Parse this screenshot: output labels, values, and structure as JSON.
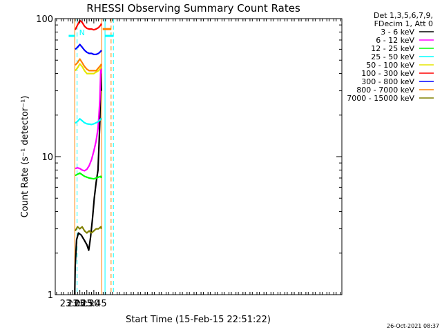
{
  "chart_data": {
    "type": "line",
    "title": "RHESSI Observing Summary Count Rates",
    "xlabel": "Start Time (15-Feb-15 22:51:22)",
    "ylabel": "Count Rate (s⁻¹ detector⁻¹)",
    "y_scale": "log",
    "ylim": [
      1,
      100
    ],
    "xlim_minutes": [
      22.37,
      32.62
    ],
    "x_ticks": [
      {
        "label": "23:00",
        "t": "23:00"
      },
      {
        "label": "23:15",
        "t": "23:15"
      },
      {
        "label": "23:30",
        "t": "23:30"
      },
      {
        "label": "23:45",
        "t": "23:45"
      },
      {
        "label": "00:00",
        "t": "00:00"
      },
      {
        "label": "00:15",
        "t": "00:15"
      },
      {
        "label": "00:30",
        "t": "00:30"
      }
    ],
    "y_ticks": [
      {
        "label": "1",
        "value": 1
      },
      {
        "label": "10",
        "value": 10
      },
      {
        "label": "100",
        "value": 100
      }
    ],
    "legend_header": [
      "Det 1,3,5,6,7,9,",
      "FDecim 1, Att 0"
    ],
    "legend_placement": "right",
    "series": [
      {
        "name": "3 - 6 keV",
        "color": "#000000",
        "x": [
          "23:04",
          "23:05",
          "23:08",
          "23:12",
          "23:18",
          "23:24",
          "23:30",
          "23:34",
          "23:38",
          "23:42",
          "23:46",
          "23:50",
          "23:54",
          "23:56",
          "23:58",
          "23:59",
          "24:00",
          "24:01"
        ],
        "y": [
          1.0,
          1.6,
          2.5,
          2.8,
          2.7,
          2.5,
          2.3,
          2.1,
          2.6,
          3.5,
          5.0,
          6.5,
          8.0,
          12,
          18,
          28,
          40,
          30
        ]
      },
      {
        "name": "6 - 12 keV",
        "color": "#ff00ff",
        "x": [
          "23:05",
          "23:10",
          "23:15",
          "23:20",
          "23:25",
          "23:30",
          "23:35",
          "23:40",
          "23:45",
          "23:50",
          "23:54",
          "23:56",
          "23:58",
          "23:59",
          "24:00",
          "24:01"
        ],
        "y": [
          8.2,
          8.3,
          8.2,
          8.0,
          7.9,
          8.1,
          8.6,
          9.5,
          11,
          13,
          16,
          20,
          26,
          34,
          45,
          40
        ]
      },
      {
        "name": "12 - 25 keV",
        "color": "#00ff00",
        "x": [
          "23:05",
          "23:15",
          "23:25",
          "23:35",
          "23:45",
          "23:55",
          "24:00",
          "24:01"
        ],
        "y": [
          7.3,
          7.6,
          7.2,
          7.0,
          6.9,
          7.1,
          7.2,
          7.0
        ]
      },
      {
        "name": "25 - 50 keV",
        "color": "#00ffff",
        "x": [
          "23:05",
          "23:10",
          "23:15",
          "23:20",
          "23:25",
          "23:30",
          "23:35",
          "23:40",
          "23:45",
          "23:50",
          "23:55",
          "24:00",
          "24:01"
        ],
        "y": [
          17.5,
          18.0,
          18.8,
          18.2,
          17.6,
          17.3,
          17.2,
          17.1,
          17.3,
          17.6,
          18.0,
          18.7,
          19.0
        ]
      },
      {
        "name": "50 - 100 keV",
        "color": "#e6e600",
        "x": [
          "23:05",
          "23:10",
          "23:15",
          "23:20",
          "23:25",
          "23:30",
          "23:35",
          "23:40",
          "23:45",
          "23:50",
          "23:55",
          "24:00",
          "24:01"
        ],
        "y": [
          42,
          44,
          47,
          45,
          42,
          40,
          40,
          40,
          40,
          41,
          42,
          44,
          45
        ]
      },
      {
        "name": "100 - 300 keV",
        "color": "#ff0000",
        "x": [
          "23:05",
          "23:10",
          "23:15",
          "23:20",
          "23:25",
          "23:30",
          "23:35",
          "23:40",
          "23:45",
          "23:50",
          "23:55",
          "24:00",
          "24:01"
        ],
        "y": [
          83,
          90,
          97,
          94,
          88,
          85,
          84,
          84,
          83,
          84,
          86,
          90,
          92
        ]
      },
      {
        "name": "300 - 800 keV",
        "color": "#0000ff",
        "x": [
          "23:05",
          "23:10",
          "23:15",
          "23:20",
          "23:25",
          "23:30",
          "23:35",
          "23:40",
          "23:45",
          "23:50",
          "23:55",
          "24:00",
          "24:01"
        ],
        "y": [
          60,
          62,
          65,
          62,
          59,
          57,
          56,
          56,
          55,
          55,
          56,
          58,
          59
        ]
      },
      {
        "name": "800 - 7000 keV",
        "color": "#ff8000",
        "x": [
          "23:05",
          "23:10",
          "23:15",
          "23:20",
          "23:25",
          "23:30",
          "23:35",
          "23:40",
          "23:45",
          "23:50",
          "23:55",
          "24:00",
          "24:01"
        ],
        "y": [
          46,
          48,
          51,
          48,
          45,
          43,
          42,
          42,
          42,
          42,
          44,
          46,
          47
        ]
      },
      {
        "name": "7000 - 15000 keV",
        "color": "#808000",
        "x": [
          "23:05",
          "23:10",
          "23:15",
          "23:20",
          "23:25",
          "23:30",
          "23:35",
          "23:40",
          "23:45",
          "23:50",
          "23:55",
          "24:00",
          "24:01"
        ],
        "y": [
          2.9,
          3.1,
          3.0,
          3.1,
          2.9,
          2.8,
          2.9,
          2.8,
          2.9,
          3.0,
          3.0,
          3.1,
          3.0
        ]
      }
    ],
    "flag_segments": [
      {
        "color": "#00ffff",
        "x": [
          "22:51",
          "23:04"
        ],
        "y": 75
      },
      {
        "color": "#00ffff",
        "x": [
          "24:09",
          "24:27"
        ],
        "y": 75
      },
      {
        "color": "#ff8000",
        "x": [
          "24:04",
          "24:22"
        ],
        "y": 84
      }
    ],
    "vlines": [
      {
        "x": "23:04",
        "color": "#ff8000",
        "style": "solid"
      },
      {
        "x": "23:09",
        "color": "#00ffff",
        "style": "dashed"
      },
      {
        "x": "24:02",
        "color": "#ff8000",
        "style": "solid"
      },
      {
        "x": "24:09",
        "color": "#00ffff",
        "style": "solid"
      },
      {
        "x": "24:22",
        "color": "#ff8000",
        "style": "dashed"
      },
      {
        "x": "24:27",
        "color": "#00ffff",
        "style": "dashed"
      }
    ],
    "markers": [
      {
        "text": "N",
        "x": "23:09",
        "color": "#00ffff"
      }
    ],
    "grid": false
  },
  "footer": {
    "timestamp": "26-Oct-2021 08:37"
  }
}
